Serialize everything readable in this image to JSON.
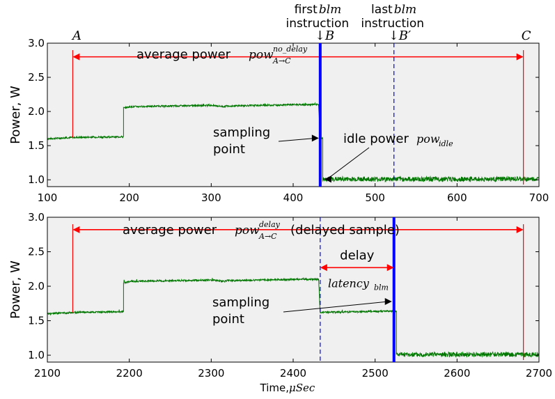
{
  "chart_data": [
    {
      "type": "line",
      "title": "",
      "xlabel": "",
      "ylabel": "Power, W",
      "xlim": [
        100,
        700
      ],
      "ylim": [
        0.9,
        3.0
      ],
      "xticks": [
        "100",
        "200",
        "300",
        "400",
        "500",
        "600",
        "700"
      ],
      "yticks": [
        "1.0",
        "1.5",
        "2.0",
        "2.5",
        "3.0"
      ],
      "grid": false,
      "series": [
        {
          "color": "#007700",
          "x": [
            100,
            131,
            131,
            193,
            193,
            201,
            250,
            300,
            317,
            317,
            360,
            400,
            431,
            433,
            433,
            436,
            436,
            700
          ],
          "y": [
            1.6,
            1.62,
            1.62,
            1.63,
            2.05,
            2.07,
            2.08,
            2.09,
            2.07,
            2.08,
            2.09,
            2.1,
            2.1,
            1.61,
            1.61,
            1.61,
            1.01,
            1.01
          ]
        }
      ],
      "markers": {
        "A": 131,
        "B": 433,
        "B_prime": 523,
        "C": 681
      },
      "labels": {
        "A": "A",
        "B": "↓B",
        "B_prime": "↓B′",
        "C": "C",
        "first_blm_line1": "first blm",
        "first_blm_line2": "instruction",
        "last_blm_line1": "last blm",
        "last_blm_line2": "instruction",
        "average_power": "average power pow",
        "average_power_sup": "no_delay",
        "average_power_sub": "A→C",
        "sampling_point_line1": "sampling",
        "sampling_point_line2": "point",
        "idle_power": "idle power",
        "idle_power_symbol": "pow",
        "idle_power_sub": "idle"
      }
    },
    {
      "type": "line",
      "title": "",
      "xlabel": "Time, μSec",
      "ylabel": "Power, W",
      "xlim": [
        2100,
        2700
      ],
      "ylim": [
        0.9,
        3.0
      ],
      "xticks": [
        "2100",
        "2200",
        "2300",
        "2400",
        "2500",
        "2600",
        "2700"
      ],
      "yticks": [
        "1.0",
        "1.5",
        "2.0",
        "2.5",
        "3.0"
      ],
      "grid": false,
      "series": [
        {
          "color": "#007700",
          "x": [
            2100,
            2131,
            2131,
            2193,
            2193,
            2201,
            2250,
            2300,
            2317,
            2317,
            2360,
            2400,
            2431,
            2433,
            2433,
            2480,
            2523,
            2526,
            2526,
            2700
          ],
          "y": [
            1.6,
            1.62,
            1.62,
            1.63,
            2.05,
            2.07,
            2.08,
            2.09,
            2.07,
            2.08,
            2.09,
            2.1,
            2.1,
            1.61,
            1.62,
            1.63,
            1.64,
            1.64,
            1.01,
            1.01
          ]
        }
      ],
      "markers": {
        "A": 2131,
        "first_blm": 2433,
        "sample": 2523,
        "C": 2681
      },
      "labels": {
        "average_power": "average power pow",
        "average_power_sup": "delay",
        "average_power_sub": "A→C",
        "average_power_suffix": "(delayed sample)",
        "delay": "delay",
        "latency": "latency",
        "latency_sub": "blm",
        "sampling_point_line1": "sampling",
        "sampling_point_line2": "point"
      }
    }
  ]
}
